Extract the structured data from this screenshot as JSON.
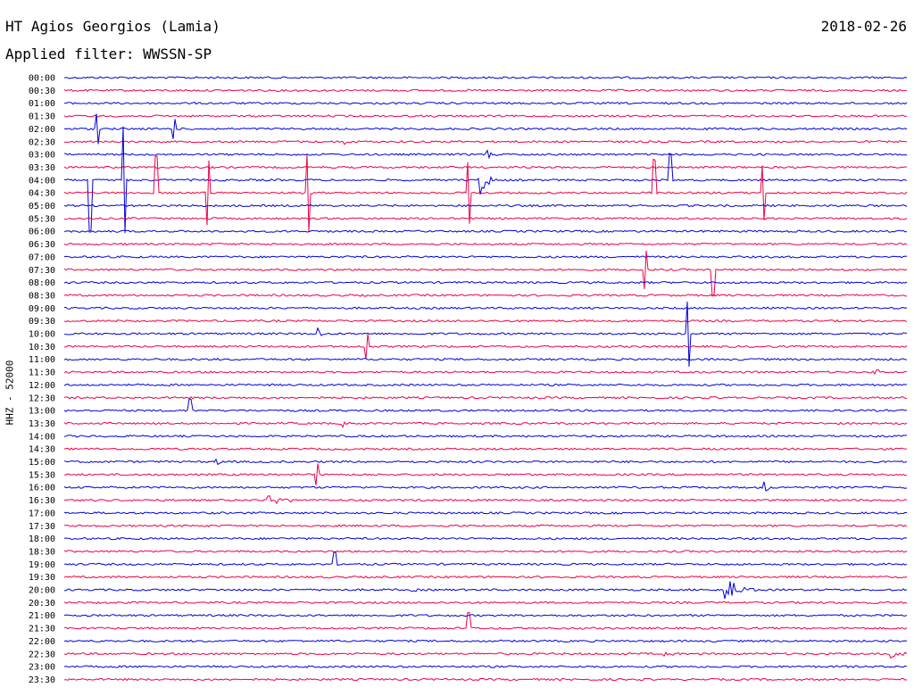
{
  "header": {
    "station": "HT Agios Georgios (Lamia)",
    "date": "2018-02-26",
    "filter": "Applied filter: WWSSN-SP"
  },
  "channel_label": "HHZ - 52000",
  "colors": {
    "even": "#0000dd",
    "odd": "#ee0044"
  },
  "chart_data": {
    "type": "line",
    "title": "HT Agios Georgios (Lamia)",
    "tick_labels": [
      "00:00",
      "00:30",
      "01:00",
      "01:30",
      "02:00",
      "02:30",
      "03:00",
      "03:30",
      "04:00",
      "04:30",
      "05:00",
      "05:30",
      "06:00",
      "06:30",
      "07:00",
      "07:30",
      "08:00",
      "08:30",
      "09:00",
      "09:30",
      "10:00",
      "10:30",
      "11:00",
      "11:30",
      "12:00",
      "12:30",
      "13:00",
      "13:30",
      "14:00",
      "14:30",
      "15:00",
      "15:30",
      "16:00",
      "16:30",
      "17:00",
      "17:30",
      "18:00",
      "18:30",
      "19:00",
      "19:30",
      "20:00",
      "20:30",
      "21:00",
      "21:30",
      "22:00",
      "22:30",
      "23:00",
      "23:30"
    ],
    "trace_span_minutes": 30,
    "events": [
      {
        "row": 4,
        "t": 0.04,
        "kind": "spike",
        "amp": 1.2
      },
      {
        "row": 4,
        "t": 0.13,
        "kind": "spike",
        "amp": 0.8
      },
      {
        "row": 5,
        "t": 0.33,
        "kind": "burst",
        "amp": 0.6,
        "dur": 0.012
      },
      {
        "row": 6,
        "t": 0.5,
        "kind": "burst",
        "amp": 0.5,
        "dur": 0.02
      },
      {
        "row": 8,
        "t": 0.49,
        "kind": "burst",
        "amp": 2.0,
        "dur": 0.02
      },
      {
        "row": 8,
        "t": 0.03,
        "kind": "spike",
        "amp": 4.0
      },
      {
        "row": 8,
        "t": 0.07,
        "kind": "spike",
        "amp": 4.2
      },
      {
        "row": 8,
        "t": 0.72,
        "kind": "spike",
        "amp": 2.0
      },
      {
        "row": 9,
        "t": 0.11,
        "kind": "spike",
        "amp": 2.8
      },
      {
        "row": 9,
        "t": 0.17,
        "kind": "spike",
        "amp": 2.5
      },
      {
        "row": 9,
        "t": 0.29,
        "kind": "spike",
        "amp": 3.0
      },
      {
        "row": 9,
        "t": 0.48,
        "kind": "spike",
        "amp": 2.4
      },
      {
        "row": 9,
        "t": 0.7,
        "kind": "spike",
        "amp": 2.6
      },
      {
        "row": 9,
        "t": 0.83,
        "kind": "spike",
        "amp": 2.2
      },
      {
        "row": 10,
        "t": 0.01,
        "kind": "step",
        "amp": 0.0
      },
      {
        "row": 15,
        "t": 0.64,
        "kind": "step",
        "amp": 0.0
      },
      {
        "row": 15,
        "t": 0.69,
        "kind": "spike",
        "amp": 1.5
      },
      {
        "row": 15,
        "t": 0.77,
        "kind": "spike",
        "amp": 2.0
      },
      {
        "row": 20,
        "t": 0.3,
        "kind": "burst",
        "amp": 0.6,
        "dur": 0.01
      },
      {
        "row": 20,
        "t": 0.74,
        "kind": "spike",
        "amp": 2.5
      },
      {
        "row": 21,
        "t": 0.36,
        "kind": "spike",
        "amp": 1.0
      },
      {
        "row": 23,
        "t": 0.96,
        "kind": "burst",
        "amp": 0.6,
        "dur": 0.012
      },
      {
        "row": 26,
        "t": 0.15,
        "kind": "spike",
        "amp": 0.9
      },
      {
        "row": 27,
        "t": 0.33,
        "kind": "burst",
        "amp": 0.35,
        "dur": 0.01
      },
      {
        "row": 30,
        "t": 0.18,
        "kind": "burst",
        "amp": 0.6,
        "dur": 0.008
      },
      {
        "row": 31,
        "t": 0.3,
        "kind": "spike",
        "amp": 0.9
      },
      {
        "row": 32,
        "t": 0.83,
        "kind": "burst",
        "amp": 0.8,
        "dur": 0.01
      },
      {
        "row": 33,
        "t": 0.24,
        "kind": "burst",
        "amp": 0.55,
        "dur": 0.04
      },
      {
        "row": 35,
        "t": 0.72,
        "kind": "burst",
        "amp": 0.2,
        "dur": 0.01
      },
      {
        "row": 38,
        "t": 0.32,
        "kind": "spike",
        "amp": 0.9
      },
      {
        "row": 40,
        "t": 0.41,
        "kind": "burst",
        "amp": 0.4,
        "dur": 0.01
      },
      {
        "row": 40,
        "t": 0.78,
        "kind": "burst",
        "amp": 1.6,
        "dur": 0.04
      },
      {
        "row": 43,
        "t": 0.48,
        "kind": "spike",
        "amp": 1.2
      },
      {
        "row": 45,
        "t": 0.71,
        "kind": "burst",
        "amp": 0.3,
        "dur": 0.02
      },
      {
        "row": 45,
        "t": 0.98,
        "kind": "burst",
        "amp": 0.6,
        "dur": 0.03
      },
      {
        "row": 46,
        "t": 0.17,
        "kind": "burst",
        "amp": 0.2,
        "dur": 0.01
      },
      {
        "row": 46,
        "t": 0.92,
        "kind": "burst",
        "amp": 0.25,
        "dur": 0.01
      }
    ]
  }
}
